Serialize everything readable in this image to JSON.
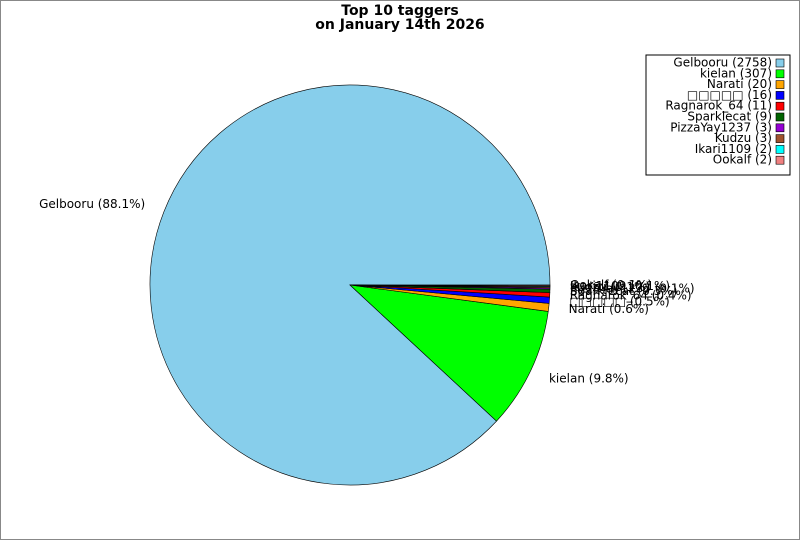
{
  "chart_data": {
    "type": "pie",
    "title": [
      "Top 10 taggers",
      "on January 14th 2026"
    ],
    "categories": [
      "Gelbooru",
      "kielan",
      "Narati",
      "□□□□□",
      "Ragnarok_64",
      "Sparklecat",
      "PizzaYay1237",
      "Kudzu",
      "Ikari1109",
      "Ookalf"
    ],
    "values": [
      2758,
      307,
      20,
      16,
      11,
      9,
      3,
      3,
      2,
      2
    ],
    "legend_labels": [
      "Gelbooru (2758)",
      "kielan (307)",
      "Narati (20)",
      "□□□□□ (16)",
      "Ragnarok_64 (11)",
      "Sparklecat (9)",
      "PizzaYay1237 (3)",
      "Kudzu (3)",
      "Ikari1109 (2)",
      "Ookalf (2)"
    ],
    "slice_labels": [
      "Gelbooru (88.1%)",
      "kielan (9.8%)",
      "Narati (0.6%)",
      "□□□□□ (0.5%)",
      "Ragnarok_64 (0.4%)",
      "Sparklecat (0.3%)",
      "PizzaYay1237 (0.1%)",
      "Kudzu (0.1%)",
      "Ikari1109 (0.1%)",
      "Ookalf (0.1%)"
    ],
    "colors": [
      "#87ceeb",
      "#00ff00",
      "#ffa500",
      "#0000ff",
      "#ff0000",
      "#006400",
      "#9400d3",
      "#a0522d",
      "#00ffff",
      "#f08080"
    ],
    "legend": "upper right"
  }
}
